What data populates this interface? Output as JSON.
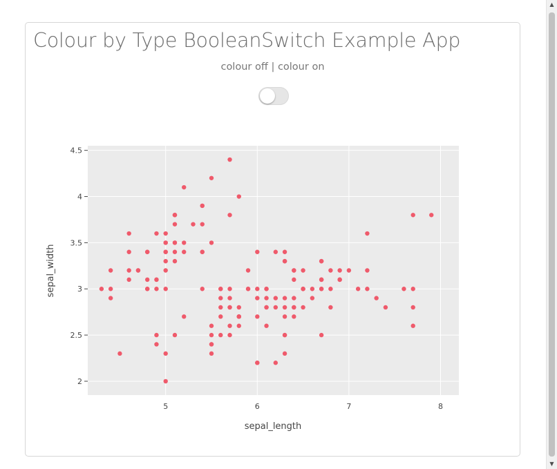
{
  "page": {
    "title": "Colour by Type BooleanSwitch Example App",
    "switch_label": "colour off | colour on",
    "switch_on": false
  },
  "colors": {
    "marker": "#ef5a6b",
    "plot_bg": "#ebebeb",
    "grid": "#ffffff"
  },
  "chart_data": {
    "type": "scatter",
    "xlabel": "sepal_length",
    "ylabel": "sepal_width",
    "xlim": [
      4.15,
      8.2
    ],
    "ylim": [
      1.85,
      4.55
    ],
    "xticks": [
      5,
      6,
      7,
      8
    ],
    "yticks": [
      2,
      2.5,
      3,
      3.5,
      4,
      4.5
    ],
    "xtick_labels": [
      "5",
      "6",
      "7",
      "8"
    ],
    "ytick_labels": [
      "2",
      "2.5",
      "3",
      "3.5",
      "4",
      "4.5"
    ],
    "grid": true,
    "points": [
      [
        5.1,
        3.5
      ],
      [
        4.9,
        3.0
      ],
      [
        4.7,
        3.2
      ],
      [
        4.6,
        3.1
      ],
      [
        5.0,
        3.6
      ],
      [
        5.4,
        3.9
      ],
      [
        4.6,
        3.4
      ],
      [
        5.0,
        3.4
      ],
      [
        4.4,
        2.9
      ],
      [
        4.9,
        3.1
      ],
      [
        5.4,
        3.7
      ],
      [
        4.8,
        3.4
      ],
      [
        4.8,
        3.0
      ],
      [
        4.3,
        3.0
      ],
      [
        5.8,
        4.0
      ],
      [
        5.7,
        4.4
      ],
      [
        5.4,
        3.9
      ],
      [
        5.1,
        3.5
      ],
      [
        5.7,
        3.8
      ],
      [
        5.1,
        3.8
      ],
      [
        5.4,
        3.4
      ],
      [
        5.1,
        3.7
      ],
      [
        4.6,
        3.6
      ],
      [
        5.1,
        3.3
      ],
      [
        4.8,
        3.4
      ],
      [
        5.0,
        3.0
      ],
      [
        5.0,
        3.4
      ],
      [
        5.2,
        3.5
      ],
      [
        5.2,
        3.4
      ],
      [
        4.7,
        3.2
      ],
      [
        4.8,
        3.1
      ],
      [
        5.4,
        3.4
      ],
      [
        5.2,
        4.1
      ],
      [
        5.5,
        4.2
      ],
      [
        4.9,
        3.1
      ],
      [
        5.0,
        3.2
      ],
      [
        5.5,
        3.5
      ],
      [
        4.9,
        3.6
      ],
      [
        4.4,
        3.0
      ],
      [
        5.1,
        3.4
      ],
      [
        5.0,
        3.5
      ],
      [
        4.5,
        2.3
      ],
      [
        4.4,
        3.2
      ],
      [
        5.0,
        3.5
      ],
      [
        5.1,
        3.8
      ],
      [
        4.8,
        3.0
      ],
      [
        5.1,
        3.8
      ],
      [
        4.6,
        3.2
      ],
      [
        5.3,
        3.7
      ],
      [
        5.0,
        3.3
      ],
      [
        7.0,
        3.2
      ],
      [
        6.4,
        3.2
      ],
      [
        6.9,
        3.1
      ],
      [
        5.5,
        2.3
      ],
      [
        6.5,
        2.8
      ],
      [
        5.7,
        2.8
      ],
      [
        6.3,
        3.3
      ],
      [
        4.9,
        2.4
      ],
      [
        6.6,
        2.9
      ],
      [
        5.2,
        2.7
      ],
      [
        5.0,
        2.0
      ],
      [
        5.9,
        3.0
      ],
      [
        6.0,
        2.2
      ],
      [
        6.1,
        2.9
      ],
      [
        5.6,
        2.9
      ],
      [
        6.7,
        3.1
      ],
      [
        5.6,
        3.0
      ],
      [
        5.8,
        2.7
      ],
      [
        6.2,
        2.2
      ],
      [
        5.6,
        2.5
      ],
      [
        5.9,
        3.2
      ],
      [
        6.1,
        2.8
      ],
      [
        6.3,
        2.5
      ],
      [
        6.1,
        2.8
      ],
      [
        6.4,
        2.9
      ],
      [
        6.6,
        3.0
      ],
      [
        6.8,
        2.8
      ],
      [
        6.7,
        3.0
      ],
      [
        6.0,
        2.9
      ],
      [
        5.7,
        2.6
      ],
      [
        5.5,
        2.4
      ],
      [
        5.5,
        2.4
      ],
      [
        5.8,
        2.7
      ],
      [
        6.0,
        2.7
      ],
      [
        5.4,
        3.0
      ],
      [
        6.0,
        3.4
      ],
      [
        6.7,
        3.1
      ],
      [
        6.3,
        2.3
      ],
      [
        5.6,
        3.0
      ],
      [
        5.5,
        2.5
      ],
      [
        5.5,
        2.6
      ],
      [
        6.1,
        3.0
      ],
      [
        5.8,
        2.6
      ],
      [
        5.0,
        2.3
      ],
      [
        5.6,
        2.7
      ],
      [
        5.7,
        3.0
      ],
      [
        5.7,
        2.9
      ],
      [
        6.2,
        2.9
      ],
      [
        5.1,
        2.5
      ],
      [
        5.7,
        2.8
      ],
      [
        6.3,
        3.3
      ],
      [
        5.8,
        2.7
      ],
      [
        7.1,
        3.0
      ],
      [
        6.3,
        2.9
      ],
      [
        6.5,
        3.0
      ],
      [
        7.6,
        3.0
      ],
      [
        4.9,
        2.5
      ],
      [
        7.3,
        2.9
      ],
      [
        6.7,
        2.5
      ],
      [
        7.2,
        3.6
      ],
      [
        6.5,
        3.2
      ],
      [
        6.4,
        2.7
      ],
      [
        6.8,
        3.0
      ],
      [
        5.7,
        2.5
      ],
      [
        5.8,
        2.8
      ],
      [
        6.4,
        3.2
      ],
      [
        6.5,
        3.0
      ],
      [
        7.7,
        3.8
      ],
      [
        7.7,
        2.6
      ],
      [
        6.0,
        2.2
      ],
      [
        6.9,
        3.2
      ],
      [
        5.6,
        2.8
      ],
      [
        7.7,
        2.8
      ],
      [
        6.3,
        2.7
      ],
      [
        6.7,
        3.3
      ],
      [
        7.2,
        3.2
      ],
      [
        6.2,
        2.8
      ],
      [
        6.1,
        3.0
      ],
      [
        6.4,
        2.8
      ],
      [
        7.2,
        3.0
      ],
      [
        7.4,
        2.8
      ],
      [
        7.9,
        3.8
      ],
      [
        6.4,
        2.8
      ],
      [
        6.3,
        2.8
      ],
      [
        6.1,
        2.6
      ],
      [
        7.7,
        3.0
      ],
      [
        6.3,
        3.4
      ],
      [
        6.4,
        3.1
      ],
      [
        6.0,
        3.0
      ],
      [
        6.9,
        3.1
      ],
      [
        6.7,
        3.1
      ],
      [
        6.9,
        3.1
      ],
      [
        5.8,
        2.7
      ],
      [
        6.8,
        3.2
      ],
      [
        6.7,
        3.3
      ],
      [
        6.7,
        3.0
      ],
      [
        6.3,
        2.5
      ],
      [
        6.5,
        3.0
      ],
      [
        6.2,
        3.4
      ],
      [
        5.9,
        3.0
      ]
    ]
  },
  "scrollbar": {
    "up_arrow": "▲",
    "down_arrow": "▼"
  }
}
